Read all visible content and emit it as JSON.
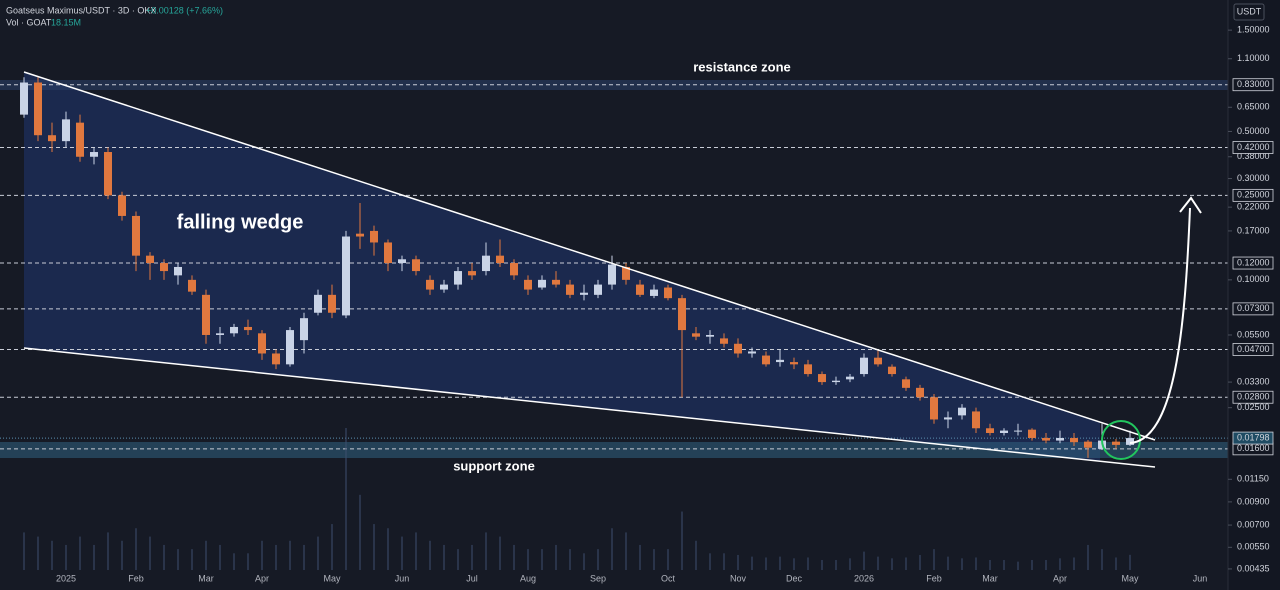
{
  "chart_data": {
    "type": "candlestick",
    "title": "Goatseus Maximus/USDT · 3D · OKX",
    "change": "+0.00128 (+7.66%)",
    "volume_title": "Vol · GOAT",
    "volume_label": "18.15M",
    "currency": "USDT",
    "annotations": [
      "resistance zone",
      "falling wedge",
      "support zone"
    ],
    "log_scale": true,
    "grid": false,
    "up_color": "#c9d3e6",
    "down_color": "#e0783f",
    "volume_color": "#3d4f6e",
    "ylim": [
      0.0043,
      2.08
    ],
    "categories": [
      null,
      null,
      null,
      "2025",
      null,
      null,
      null,
      null,
      "Feb",
      null,
      null,
      null,
      null,
      "Mar",
      null,
      null,
      null,
      "Apr",
      null,
      null,
      null,
      null,
      "May",
      null,
      null,
      null,
      null,
      "Jun",
      null,
      null,
      null,
      null,
      "Jul",
      null,
      null,
      null,
      "Aug",
      null,
      null,
      null,
      null,
      "Sep",
      null,
      null,
      null,
      null,
      "Oct",
      null,
      null,
      null,
      null,
      "Nov",
      null,
      null,
      null,
      "Dec",
      null,
      null,
      null,
      null,
      "2026",
      null,
      null,
      null,
      null,
      "Feb",
      null,
      null,
      null,
      "Mar",
      null,
      null,
      null,
      null,
      "Apr",
      null,
      null,
      null,
      null,
      "May",
      null,
      null,
      null,
      null,
      "Jun"
    ],
    "open": [
      0.6,
      0.85,
      0.48,
      0.45,
      0.55,
      0.38,
      0.4,
      0.25,
      0.2,
      0.13,
      0.12,
      0.105,
      0.1,
      0.085,
      0.055,
      0.056,
      0.06,
      0.056,
      0.045,
      0.04,
      0.052,
      0.07,
      0.085,
      0.068,
      0.165,
      0.17,
      0.15,
      0.12,
      0.125,
      0.1,
      0.09,
      0.095,
      0.11,
      0.11,
      0.13,
      0.12,
      0.1,
      0.092,
      0.1,
      0.095,
      0.085,
      0.085,
      0.095,
      0.115,
      0.095,
      0.084,
      0.092,
      0.082,
      0.056,
      0.054,
      0.053,
      0.05,
      0.045,
      0.044,
      0.041,
      0.041,
      0.04,
      0.036,
      0.033,
      0.034,
      0.036,
      0.043,
      0.039,
      0.034,
      0.031,
      0.028,
      0.022,
      0.023,
      0.024,
      0.02,
      0.019,
      0.0195,
      0.0197,
      0.018,
      0.0175,
      0.018,
      0.0173,
      0.016,
      0.0173,
      0.0167,
      null,
      null,
      null,
      null,
      null
    ],
    "high": [
      0.9,
      0.9,
      0.55,
      0.62,
      0.6,
      0.42,
      0.42,
      0.26,
      0.21,
      0.135,
      0.125,
      0.12,
      0.105,
      0.09,
      0.06,
      0.062,
      0.065,
      0.058,
      0.047,
      0.06,
      0.07,
      0.09,
      0.095,
      0.17,
      0.23,
      0.18,
      0.155,
      0.13,
      0.13,
      0.105,
      0.1,
      0.115,
      0.12,
      0.15,
      0.155,
      0.125,
      0.105,
      0.105,
      0.11,
      0.1,
      0.095,
      0.1,
      0.13,
      0.12,
      0.1,
      0.095,
      0.095,
      0.085,
      0.06,
      0.058,
      0.056,
      0.053,
      0.048,
      0.046,
      0.047,
      0.043,
      0.042,
      0.037,
      0.035,
      0.036,
      0.045,
      0.047,
      0.04,
      0.035,
      0.032,
      0.029,
      0.024,
      0.026,
      0.025,
      0.021,
      0.02,
      0.021,
      0.02,
      0.019,
      0.0195,
      0.019,
      0.0176,
      0.021,
      0.0178,
      0.0195,
      null,
      null,
      null,
      null,
      null
    ],
    "low": [
      0.58,
      0.45,
      0.4,
      0.42,
      0.36,
      0.35,
      0.24,
      0.19,
      0.11,
      0.1,
      0.1,
      0.095,
      0.085,
      0.05,
      0.05,
      0.054,
      0.055,
      0.042,
      0.038,
      0.039,
      0.045,
      0.068,
      0.066,
      0.066,
      0.14,
      0.13,
      0.11,
      0.11,
      0.105,
      0.085,
      0.087,
      0.09,
      0.1,
      0.105,
      0.115,
      0.1,
      0.085,
      0.09,
      0.092,
      0.082,
      0.08,
      0.082,
      0.09,
      0.095,
      0.083,
      0.082,
      0.08,
      0.028,
      0.052,
      0.05,
      0.048,
      0.043,
      0.043,
      0.039,
      0.039,
      0.038,
      0.035,
      0.032,
      0.032,
      0.033,
      0.035,
      0.039,
      0.035,
      0.03,
      0.027,
      0.021,
      0.02,
      0.022,
      0.019,
      0.0185,
      0.0185,
      0.0185,
      0.0175,
      0.017,
      0.017,
      0.0165,
      0.0145,
      0.0158,
      0.016,
      0.0165,
      null,
      null,
      null,
      null,
      null
    ],
    "close": [
      0.85,
      0.48,
      0.45,
      0.57,
      0.38,
      0.4,
      0.25,
      0.2,
      0.13,
      0.12,
      0.11,
      0.115,
      0.088,
      0.055,
      0.056,
      0.06,
      0.058,
      0.045,
      0.04,
      0.058,
      0.066,
      0.085,
      0.07,
      0.16,
      0.16,
      0.15,
      0.12,
      0.125,
      0.11,
      0.09,
      0.095,
      0.11,
      0.105,
      0.13,
      0.12,
      0.105,
      0.09,
      0.1,
      0.095,
      0.085,
      0.087,
      0.095,
      0.118,
      0.1,
      0.085,
      0.09,
      0.082,
      0.058,
      0.054,
      0.055,
      0.05,
      0.045,
      0.046,
      0.04,
      0.042,
      0.04,
      0.036,
      0.033,
      0.0335,
      0.035,
      0.043,
      0.04,
      0.036,
      0.031,
      0.028,
      0.022,
      0.0225,
      0.025,
      0.02,
      0.019,
      0.0195,
      0.0195,
      0.018,
      0.0175,
      0.018,
      0.0172,
      0.0162,
      0.0175,
      0.0167,
      0.01798,
      null,
      null,
      null,
      null,
      null
    ],
    "volume": [
      45,
      40,
      35,
      30,
      40,
      30,
      45,
      35,
      50,
      40,
      30,
      25,
      25,
      35,
      30,
      20,
      20,
      35,
      30,
      35,
      30,
      40,
      55,
      170,
      90,
      55,
      50,
      40,
      45,
      35,
      30,
      25,
      30,
      45,
      40,
      30,
      25,
      25,
      30,
      25,
      20,
      25,
      50,
      45,
      30,
      25,
      25,
      70,
      35,
      20,
      20,
      18,
      16,
      15,
      16,
      14,
      15,
      12,
      12,
      14,
      22,
      16,
      14,
      15,
      18,
      25,
      16,
      14,
      15,
      12,
      12,
      10,
      12,
      12,
      14,
      15,
      30,
      25,
      15,
      18.15,
      null,
      null,
      null,
      null,
      null
    ],
    "yticks": [
      {
        "value": 1.5,
        "label": "1.50000"
      },
      {
        "value": 1.1,
        "label": "1.10000"
      },
      {
        "value": 0.65,
        "label": "0.65000"
      },
      {
        "value": 0.5,
        "label": "0.50000"
      },
      {
        "value": 0.38,
        "label": "0.38000"
      },
      {
        "value": 0.3,
        "label": "0.30000"
      },
      {
        "value": 0.22,
        "label": "0.22000"
      },
      {
        "value": 0.17,
        "label": "0.17000"
      },
      {
        "value": 0.1,
        "label": "0.10000"
      },
      {
        "value": 0.055,
        "label": "0.05500"
      },
      {
        "value": 0.033,
        "label": "0.03300"
      },
      {
        "value": 0.025,
        "label": "0.02500"
      },
      {
        "value": 0.0115,
        "label": "0.01150"
      },
      {
        "value": 0.009,
        "label": "0.00900"
      },
      {
        "value": 0.007,
        "label": "0.00700"
      },
      {
        "value": 0.0055,
        "label": "0.00550"
      },
      0.00435
    ],
    "levels": [
      {
        "value": 0.83,
        "label": "0.83000"
      },
      {
        "value": 0.42,
        "label": "0.42000"
      },
      {
        "value": 0.25,
        "label": "0.25000"
      },
      {
        "value": 0.12,
        "label": "0.12000"
      },
      {
        "value": 0.073,
        "label": "0.07300"
      },
      {
        "value": 0.047,
        "label": "0.04700"
      },
      {
        "value": 0.028,
        "label": "0.02800"
      },
      {
        "value": 0.016,
        "label": "0.01600"
      }
    ],
    "last_price": 0.01798
  }
}
